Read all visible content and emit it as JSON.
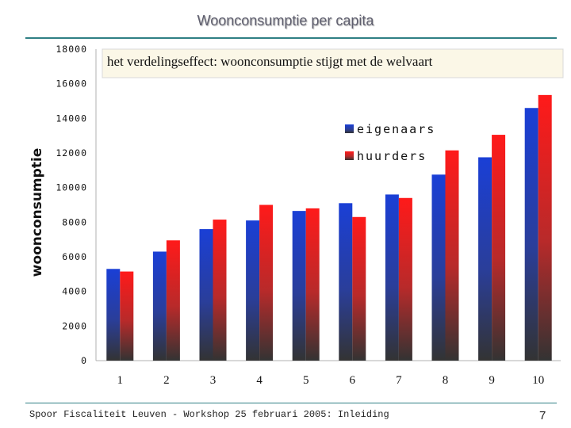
{
  "slide": {
    "title": "Woonconsumptie per capita",
    "footer": "Spoor Fiscaliteit Leuven - Workshop 25 februari 2005: Inleiding",
    "page_number": "7"
  },
  "chart_data": {
    "type": "bar",
    "title": "Woonconsumptie per capita",
    "annotation": "het verdelingseffect: woonconsumptie stijgt met de welvaart",
    "xlabel": "",
    "ylabel": "woonconsumptie",
    "categories": [
      "1",
      "2",
      "3",
      "4",
      "5",
      "6",
      "7",
      "8",
      "9",
      "10"
    ],
    "series": [
      {
        "name": "eigenaars",
        "color": "#1a3fd6",
        "values": [
          5300,
          6300,
          7600,
          8100,
          8650,
          9100,
          9600,
          10750,
          11750,
          14600
        ]
      },
      {
        "name": "huurders",
        "color": "#ff1a1a",
        "values": [
          5150,
          6950,
          8150,
          9000,
          8800,
          8300,
          9400,
          12150,
          13050,
          15350
        ]
      }
    ],
    "yticks": [
      "0",
      "2000",
      "4000",
      "6000",
      "8000",
      "10000",
      "12000",
      "14000",
      "16000",
      "18000"
    ],
    "ylim": [
      0,
      18000
    ],
    "legend_position": "upper-middle-right",
    "grid": false
  }
}
